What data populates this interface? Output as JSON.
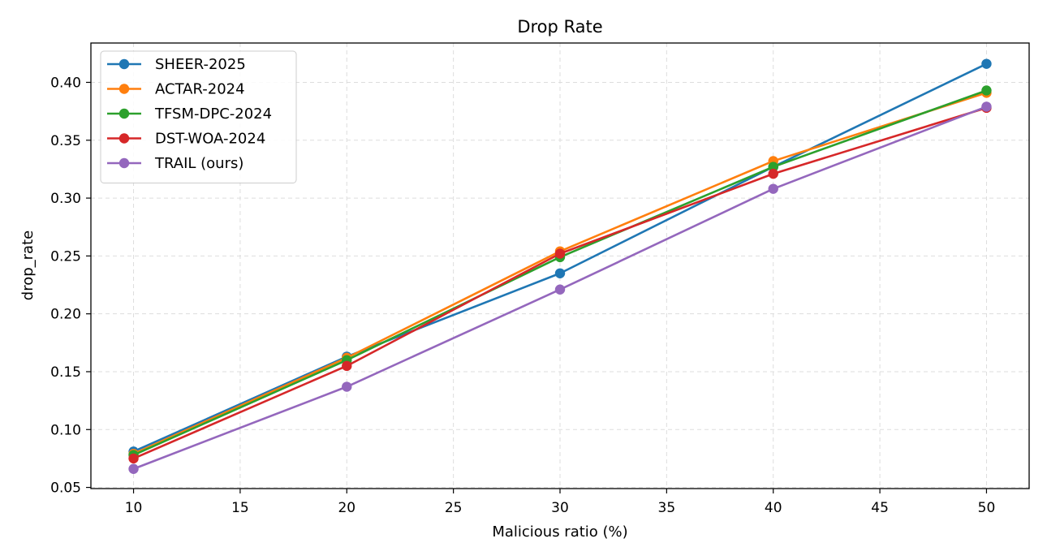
{
  "chart_data": {
    "type": "line",
    "title": "Drop Rate",
    "xlabel": "Malicious ratio (%)",
    "ylabel": "drop_rate",
    "xlim": [
      8,
      52
    ],
    "ylim": [
      0.049,
      0.434
    ],
    "xticks": [
      10,
      15,
      20,
      25,
      30,
      35,
      40,
      45,
      50
    ],
    "xtick_labels": [
      "10",
      "15",
      "20",
      "25",
      "30",
      "35",
      "40",
      "45",
      "50"
    ],
    "yticks": [
      0.05,
      0.1,
      0.15,
      0.2,
      0.25,
      0.3,
      0.35,
      0.4
    ],
    "ytick_labels": [
      "0.05",
      "0.10",
      "0.15",
      "0.20",
      "0.25",
      "0.30",
      "0.35",
      "0.40"
    ],
    "grid": true,
    "legend_position": "top-left",
    "x": [
      10,
      20,
      30,
      40,
      50
    ],
    "series": [
      {
        "name": "SHEER-2025",
        "color": "#1f77b4",
        "values": [
          0.081,
          0.163,
          0.235,
          0.327,
          0.416
        ]
      },
      {
        "name": "ACTAR-2024",
        "color": "#ff7f0e",
        "values": [
          0.079,
          0.162,
          0.254,
          0.332,
          0.391
        ]
      },
      {
        "name": "TFSM-DPC-2024",
        "color": "#2ca02c",
        "values": [
          0.078,
          0.16,
          0.249,
          0.327,
          0.393
        ]
      },
      {
        "name": "DST-WOA-2024",
        "color": "#d62728",
        "values": [
          0.075,
          0.155,
          0.252,
          0.321,
          0.378
        ]
      },
      {
        "name": "TRAIL (ours)",
        "color": "#9467bd",
        "values": [
          0.066,
          0.137,
          0.221,
          0.308,
          0.379
        ]
      }
    ]
  }
}
